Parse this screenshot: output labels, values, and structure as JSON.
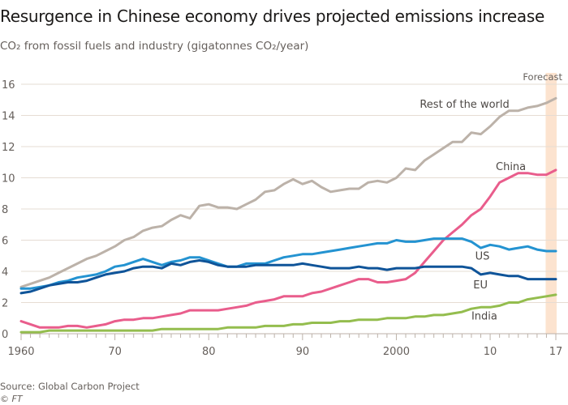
{
  "header": {
    "title": "Resurgence in Chinese economy drives projected emissions increase",
    "subtitle": "CO₂ from fossil fuels and industry (gigatonnes CO₂/year)"
  },
  "footer": {
    "source": "Source: Global Carbon Project",
    "credit": "© FT"
  },
  "chart_data": {
    "type": "line",
    "title": "Resurgence in Chinese economy drives projected emissions increase",
    "ylabel": "CO2 from fossil fuels and industry (gigatonnes CO2/year)",
    "xlabel": "",
    "xlim": [
      1960,
      2017
    ],
    "ylim": [
      0,
      16
    ],
    "yticks": [
      0,
      2,
      4,
      6,
      8,
      10,
      12,
      14,
      16
    ],
    "xticks": [
      1960,
      1970,
      1980,
      1990,
      2000,
      2010,
      2017
    ],
    "xtick_labels": [
      "1960",
      "70",
      "80",
      "90",
      "2000",
      "10",
      "17"
    ],
    "grid": true,
    "forecast": {
      "label": "Forecast",
      "from": 2016,
      "to": 2017,
      "color": "#fce3cf"
    },
    "x_start": 1960,
    "series": [
      {
        "name": "Rest of the world",
        "color": "#bcb2a9",
        "values": [
          3.0,
          3.2,
          3.4,
          3.6,
          3.9,
          4.2,
          4.5,
          4.8,
          5.0,
          5.3,
          5.6,
          6.0,
          6.2,
          6.6,
          6.8,
          6.9,
          7.3,
          7.6,
          7.4,
          8.2,
          8.3,
          8.1,
          8.1,
          8.0,
          8.3,
          8.6,
          9.1,
          9.2,
          9.6,
          9.9,
          9.6,
          9.8,
          9.4,
          9.1,
          9.2,
          9.3,
          9.3,
          9.7,
          9.8,
          9.7,
          10.0,
          10.6,
          10.5,
          11.1,
          11.5,
          11.9,
          12.3,
          12.3,
          12.9,
          12.8,
          13.3,
          13.9,
          14.3,
          14.3,
          14.5,
          14.6,
          14.8,
          15.1
        ],
        "label_at": [
          2002.5,
          14.5
        ]
      },
      {
        "name": "China",
        "color": "#e95d8c",
        "values": [
          0.8,
          0.6,
          0.4,
          0.4,
          0.4,
          0.5,
          0.5,
          0.4,
          0.5,
          0.6,
          0.8,
          0.9,
          0.9,
          1.0,
          1.0,
          1.1,
          1.2,
          1.3,
          1.5,
          1.5,
          1.5,
          1.5,
          1.6,
          1.7,
          1.8,
          2.0,
          2.1,
          2.2,
          2.4,
          2.4,
          2.4,
          2.6,
          2.7,
          2.9,
          3.1,
          3.3,
          3.5,
          3.5,
          3.3,
          3.3,
          3.4,
          3.5,
          3.9,
          4.6,
          5.3,
          6.0,
          6.5,
          7.0,
          7.6,
          8.0,
          8.8,
          9.7,
          10.0,
          10.3,
          10.3,
          10.2,
          10.2,
          10.5
        ],
        "label_at": [
          2010.6,
          10.5
        ]
      },
      {
        "name": "US",
        "color": "#2493d1",
        "values": [
          2.9,
          2.9,
          3.0,
          3.1,
          3.3,
          3.4,
          3.6,
          3.7,
          3.8,
          4.0,
          4.3,
          4.4,
          4.6,
          4.8,
          4.6,
          4.4,
          4.6,
          4.7,
          4.9,
          4.9,
          4.7,
          4.5,
          4.3,
          4.3,
          4.5,
          4.5,
          4.5,
          4.7,
          4.9,
          5.0,
          5.1,
          5.1,
          5.2,
          5.3,
          5.4,
          5.5,
          5.6,
          5.7,
          5.8,
          5.8,
          6.0,
          5.9,
          5.9,
          6.0,
          6.1,
          6.1,
          6.1,
          6.1,
          5.9,
          5.5,
          5.7,
          5.6,
          5.4,
          5.5,
          5.6,
          5.4,
          5.3,
          5.3
        ],
        "label_at": [
          2008.4,
          4.75
        ]
      },
      {
        "name": "EU",
        "color": "#0f5499",
        "values": [
          2.6,
          2.7,
          2.9,
          3.1,
          3.2,
          3.3,
          3.3,
          3.4,
          3.6,
          3.8,
          3.9,
          4.0,
          4.2,
          4.3,
          4.3,
          4.2,
          4.5,
          4.4,
          4.6,
          4.7,
          4.6,
          4.4,
          4.3,
          4.3,
          4.3,
          4.4,
          4.4,
          4.4,
          4.4,
          4.4,
          4.5,
          4.4,
          4.3,
          4.2,
          4.2,
          4.2,
          4.3,
          4.2,
          4.2,
          4.1,
          4.2,
          4.2,
          4.2,
          4.3,
          4.3,
          4.3,
          4.3,
          4.3,
          4.2,
          3.8,
          3.9,
          3.8,
          3.7,
          3.7,
          3.5,
          3.5,
          3.5,
          3.5
        ],
        "label_at": [
          2008.2,
          2.9
        ]
      },
      {
        "name": "India",
        "color": "#94bd4e",
        "values": [
          0.1,
          0.1,
          0.1,
          0.2,
          0.2,
          0.2,
          0.2,
          0.2,
          0.2,
          0.2,
          0.2,
          0.2,
          0.2,
          0.2,
          0.2,
          0.3,
          0.3,
          0.3,
          0.3,
          0.3,
          0.3,
          0.3,
          0.4,
          0.4,
          0.4,
          0.4,
          0.5,
          0.5,
          0.5,
          0.6,
          0.6,
          0.7,
          0.7,
          0.7,
          0.8,
          0.8,
          0.9,
          0.9,
          0.9,
          1.0,
          1.0,
          1.0,
          1.1,
          1.1,
          1.2,
          1.2,
          1.3,
          1.4,
          1.6,
          1.7,
          1.7,
          1.8,
          2.0,
          2.0,
          2.2,
          2.3,
          2.4,
          2.5
        ],
        "label_at": [
          2008.0,
          0.9
        ]
      }
    ]
  }
}
